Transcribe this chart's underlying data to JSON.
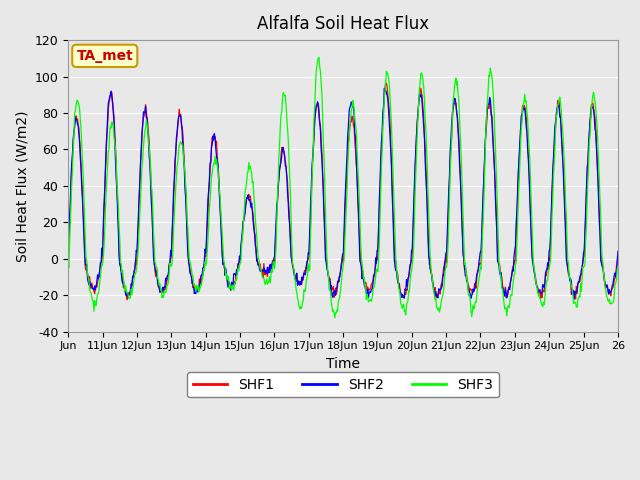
{
  "title": "Alfalfa Soil Heat Flux",
  "xlabel": "Time",
  "ylabel": "Soil Heat Flux (W/m2)",
  "ylim": [
    -40,
    120
  ],
  "background_color": "#e8e8e8",
  "plot_bg_color": "#e8e8e8",
  "annotation_text": "TA_met",
  "annotation_bg": "#ffffcc",
  "annotation_border": "#cc9900",
  "annotation_text_color": "#cc0000",
  "series_colors": [
    "red",
    "blue",
    "lime"
  ],
  "series_names": [
    "SHF1",
    "SHF2",
    "SHF3"
  ],
  "xtick_positions": [
    0,
    1,
    2,
    3,
    4,
    5,
    6,
    7,
    8,
    9,
    10,
    11,
    12,
    13,
    14,
    15,
    16
  ],
  "xtick_labels": [
    "Jun",
    "11Jun",
    "12Jun",
    "13Jun",
    "14Jun",
    "15Jun",
    "16Jun",
    "17Jun",
    "18Jun",
    "19Jun",
    "20Jun",
    "21Jun",
    "22Jun",
    "23Jun",
    "24Jun",
    "25Jun",
    "26"
  ],
  "ytick_values": [
    -40,
    -20,
    0,
    20,
    40,
    60,
    80,
    100,
    120
  ],
  "num_days": 16,
  "points_per_day": 48,
  "day_amplitudes_shf1": [
    78,
    92,
    82,
    80,
    68,
    35,
    60,
    85,
    78,
    95,
    92,
    85,
    87,
    85,
    85,
    85
  ],
  "day_amplitudes_shf2": [
    77,
    91,
    81,
    79,
    67,
    34,
    59,
    84,
    87,
    94,
    91,
    87,
    87,
    84,
    84,
    84
  ],
  "day_amplitudes_shf3": [
    88,
    75,
    72,
    65,
    55,
    50,
    92,
    110,
    85,
    103,
    100,
    98,
    103,
    88,
    88,
    90
  ]
}
